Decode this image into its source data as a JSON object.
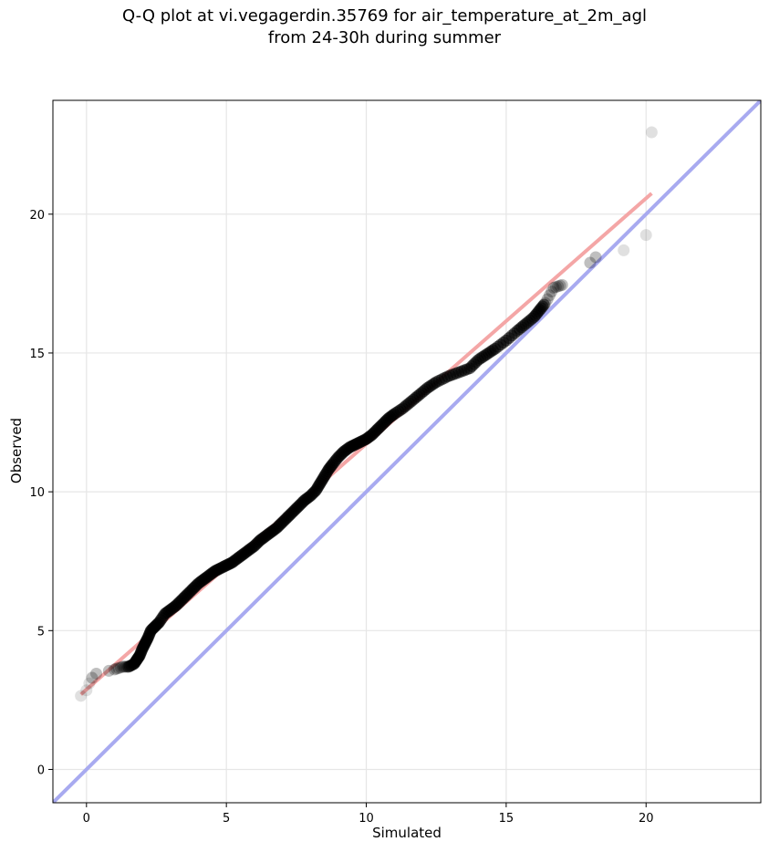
{
  "title_line1": "Q-Q plot at vi.vegagerdin.35769 for air_temperature_at_2m_agl",
  "title_line2": "from 24-30h during summer",
  "chart_data": {
    "type": "scatter",
    "title": "Q-Q plot at vi.vegagerdin.35769 for air_temperature_at_2m_agl from 24-30h during summer",
    "xlabel": "Simulated",
    "ylabel": "Observed",
    "xlim": [
      -1.2,
      24.1
    ],
    "ylim": [
      -1.2,
      24.1
    ],
    "xticks": [
      0,
      5,
      10,
      15,
      20
    ],
    "yticks": [
      0,
      5,
      10,
      15,
      20
    ],
    "grid": true,
    "colors": {
      "points": "#000000",
      "fit_line": "#f4a6a6",
      "identity_line": "#a8aaf0"
    },
    "quantiles": [
      [
        -0.2,
        2.65
      ],
      [
        0.0,
        2.85
      ],
      [
        0.1,
        3.1
      ],
      [
        0.2,
        3.3
      ],
      [
        0.35,
        3.45
      ],
      [
        0.8,
        3.55
      ],
      [
        1.0,
        3.6
      ],
      [
        1.3,
        3.7
      ],
      [
        1.5,
        3.7
      ],
      [
        1.7,
        3.8
      ],
      [
        1.8,
        3.95
      ],
      [
        1.9,
        4.1
      ],
      [
        2.0,
        4.35
      ],
      [
        2.1,
        4.55
      ],
      [
        2.2,
        4.75
      ],
      [
        2.3,
        5.0
      ],
      [
        2.45,
        5.15
      ],
      [
        2.6,
        5.3
      ],
      [
        2.8,
        5.6
      ],
      [
        3.0,
        5.75
      ],
      [
        3.2,
        5.9
      ],
      [
        3.4,
        6.1
      ],
      [
        3.6,
        6.3
      ],
      [
        3.8,
        6.5
      ],
      [
        4.0,
        6.7
      ],
      [
        4.2,
        6.85
      ],
      [
        4.4,
        7.0
      ],
      [
        4.6,
        7.15
      ],
      [
        4.8,
        7.25
      ],
      [
        5.0,
        7.35
      ],
      [
        5.2,
        7.45
      ],
      [
        5.4,
        7.6
      ],
      [
        5.6,
        7.75
      ],
      [
        5.8,
        7.9
      ],
      [
        6.0,
        8.05
      ],
      [
        6.2,
        8.25
      ],
      [
        6.4,
        8.4
      ],
      [
        6.6,
        8.55
      ],
      [
        6.8,
        8.7
      ],
      [
        7.0,
        8.9
      ],
      [
        7.2,
        9.1
      ],
      [
        7.4,
        9.3
      ],
      [
        7.6,
        9.5
      ],
      [
        7.8,
        9.7
      ],
      [
        8.0,
        9.85
      ],
      [
        8.2,
        10.05
      ],
      [
        8.35,
        10.3
      ],
      [
        8.5,
        10.55
      ],
      [
        8.65,
        10.8
      ],
      [
        8.8,
        11.0
      ],
      [
        9.0,
        11.25
      ],
      [
        9.2,
        11.45
      ],
      [
        9.4,
        11.6
      ],
      [
        9.6,
        11.7
      ],
      [
        9.8,
        11.8
      ],
      [
        10.0,
        11.9
      ],
      [
        10.2,
        12.05
      ],
      [
        10.4,
        12.25
      ],
      [
        10.6,
        12.45
      ],
      [
        10.8,
        12.65
      ],
      [
        11.0,
        12.8
      ],
      [
        11.3,
        13.0
      ],
      [
        11.6,
        13.25
      ],
      [
        11.9,
        13.5
      ],
      [
        12.2,
        13.75
      ],
      [
        12.5,
        13.95
      ],
      [
        12.9,
        14.15
      ],
      [
        13.3,
        14.3
      ],
      [
        13.7,
        14.45
      ],
      [
        14.0,
        14.75
      ],
      [
        14.3,
        14.95
      ],
      [
        14.6,
        15.15
      ],
      [
        15.0,
        15.45
      ],
      [
        15.4,
        15.8
      ],
      [
        15.7,
        16.05
      ],
      [
        16.0,
        16.3
      ],
      [
        16.2,
        16.55
      ],
      [
        16.4,
        16.8
      ],
      [
        16.7,
        17.35
      ],
      [
        17.0,
        17.45
      ],
      [
        18.0,
        18.25
      ],
      [
        18.2,
        18.45
      ],
      [
        19.2,
        18.7
      ],
      [
        20.0,
        19.25
      ],
      [
        20.2,
        22.95
      ]
    ],
    "fit_line": {
      "x": [
        -0.2,
        20.2
      ],
      "y": [
        2.7,
        20.75
      ]
    },
    "identity_line": {
      "x": [
        -1.2,
        24.1
      ],
      "y": [
        -1.2,
        24.1
      ]
    }
  }
}
